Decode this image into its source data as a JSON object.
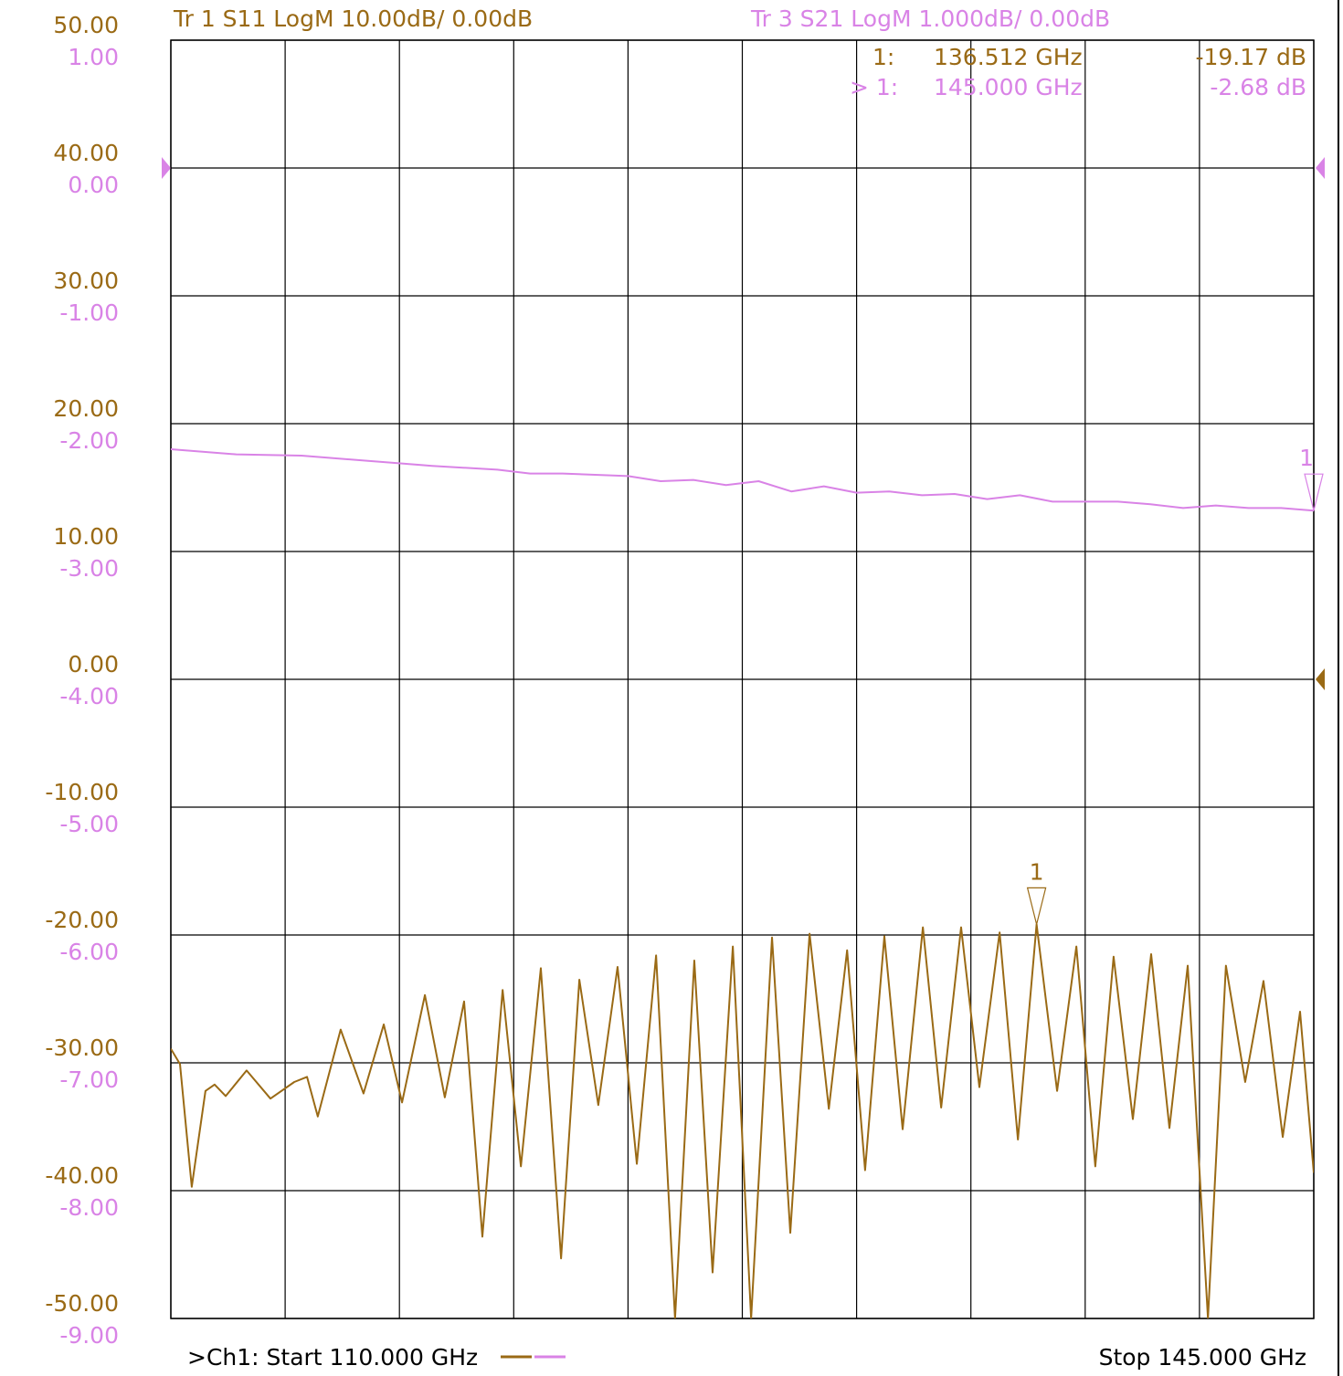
{
  "chart_data": {
    "type": "line",
    "xlim": [
      110,
      145
    ],
    "xticks": [
      110,
      113.5,
      117,
      120.5,
      124,
      127.5,
      131,
      134.5,
      138,
      141.5,
      145
    ],
    "ylim": [
      -50,
      50
    ],
    "yticks": [
      {
        "value": 50,
        "label": "50.00"
      },
      {
        "value": 40,
        "label": "40.00"
      },
      {
        "value": 30,
        "label": "30.00"
      },
      {
        "value": 20,
        "label": "20.00"
      },
      {
        "value": 10,
        "label": "10.00"
      },
      {
        "value": 0,
        "label": "0.00"
      },
      {
        "value": -10,
        "label": "-10.00"
      },
      {
        "value": -20,
        "label": "-20.00"
      },
      {
        "value": -30,
        "label": "-30.00"
      },
      {
        "value": -40,
        "label": "-40.00"
      },
      {
        "value": -50,
        "label": "-50.00"
      }
    ],
    "y2lim": [
      -9,
      1
    ],
    "y2ticks": [
      {
        "value": 1,
        "label": "1.00"
      },
      {
        "value": 0,
        "label": "0.00"
      },
      {
        "value": -1,
        "label": "-1.00"
      },
      {
        "value": -2,
        "label": "-2.00"
      },
      {
        "value": -3,
        "label": "-3.00"
      },
      {
        "value": -4,
        "label": "-4.00"
      },
      {
        "value": -5,
        "label": "-5.00"
      },
      {
        "value": -6,
        "label": "-6.00"
      },
      {
        "value": -7,
        "label": "-7.00"
      },
      {
        "value": -8,
        "label": "-8.00"
      },
      {
        "value": -9,
        "label": "-9.00"
      }
    ],
    "grid": true,
    "start_label": ">Ch1:  Start  110.000 GHz",
    "stop_label": "Stop  145.000 GHz",
    "series": [
      {
        "name": "Tr 1  S11 LogM 10.00dB/  0.00dB",
        "color": "#9a6a15",
        "x": [
          110.0,
          110.28,
          110.64,
          111.06,
          111.34,
          111.68,
          112.32,
          113.05,
          113.78,
          114.17,
          114.5,
          115.2,
          115.9,
          116.52,
          117.08,
          117.78,
          118.39,
          118.98,
          119.54,
          120.16,
          120.72,
          121.33,
          121.95,
          122.51,
          123.09,
          123.68,
          124.27,
          124.86,
          125.44,
          126.03,
          126.59,
          127.21,
          127.77,
          128.41,
          128.97,
          129.56,
          130.15,
          130.71,
          131.26,
          131.85,
          132.41,
          133.03,
          133.59,
          134.2,
          134.76,
          135.38,
          135.94,
          136.512,
          137.14,
          137.73,
          138.31,
          138.87,
          139.46,
          140.02,
          140.58,
          141.14,
          141.76,
          142.31,
          142.9,
          143.46,
          144.05,
          144.58,
          145.0
        ],
        "values": [
          -28.9,
          -30.1,
          -39.7,
          -32.2,
          -31.7,
          -32.6,
          -30.6,
          -32.8,
          -31.5,
          -31.1,
          -34.2,
          -27.4,
          -32.4,
          -27.0,
          -33.1,
          -24.7,
          -32.7,
          -25.2,
          -43.6,
          -24.3,
          -38.1,
          -22.6,
          -45.3,
          -23.5,
          -33.3,
          -22.5,
          -37.9,
          -21.6,
          -50,
          -22.0,
          -46.4,
          -20.9,
          -50,
          -20.2,
          -43.3,
          -19.9,
          -33.6,
          -21.2,
          -38.4,
          -20.1,
          -35.2,
          -19.4,
          -33.5,
          -19.4,
          -31.9,
          -19.8,
          -36.0,
          -19.17,
          -32.2,
          -20.9,
          -38.1,
          -21.7,
          -34.4,
          -21.5,
          -35.1,
          -22.4,
          -50,
          -22.4,
          -31.5,
          -23.6,
          -35.8,
          -26.0,
          -38.6
        ],
        "marker": {
          "name": "1",
          "prefix": "1:",
          "x": 136.512,
          "value": -19.17,
          "x_label": "136.512  GHz",
          "value_label": "-19.17 dB"
        }
      },
      {
        "name": "Tr 3  S21 LogM 1.000dB/  0.00dB",
        "color": "#d983e6",
        "axis": "y2",
        "x": [
          110,
          112,
          114,
          116,
          118,
          120,
          121,
          122,
          124,
          125,
          126,
          127,
          128,
          129,
          130,
          131,
          132,
          133,
          134,
          135,
          136,
          137,
          138,
          139,
          140,
          141,
          142,
          143,
          144,
          145
        ],
        "values": [
          -2.2,
          -2.24,
          -2.25,
          -2.29,
          -2.33,
          -2.36,
          -2.39,
          -2.39,
          -2.41,
          -2.45,
          -2.44,
          -2.48,
          -2.45,
          -2.53,
          -2.49,
          -2.54,
          -2.53,
          -2.56,
          -2.55,
          -2.59,
          -2.56,
          -2.61,
          -2.61,
          -2.61,
          -2.63,
          -2.66,
          -2.64,
          -2.66,
          -2.66,
          -2.68
        ],
        "marker": {
          "name": "1",
          "prefix": "> 1:",
          "x": 145,
          "value": -2.68,
          "x_label": "145.000  GHz",
          "value_label": "-2.68 dB"
        }
      }
    ]
  }
}
